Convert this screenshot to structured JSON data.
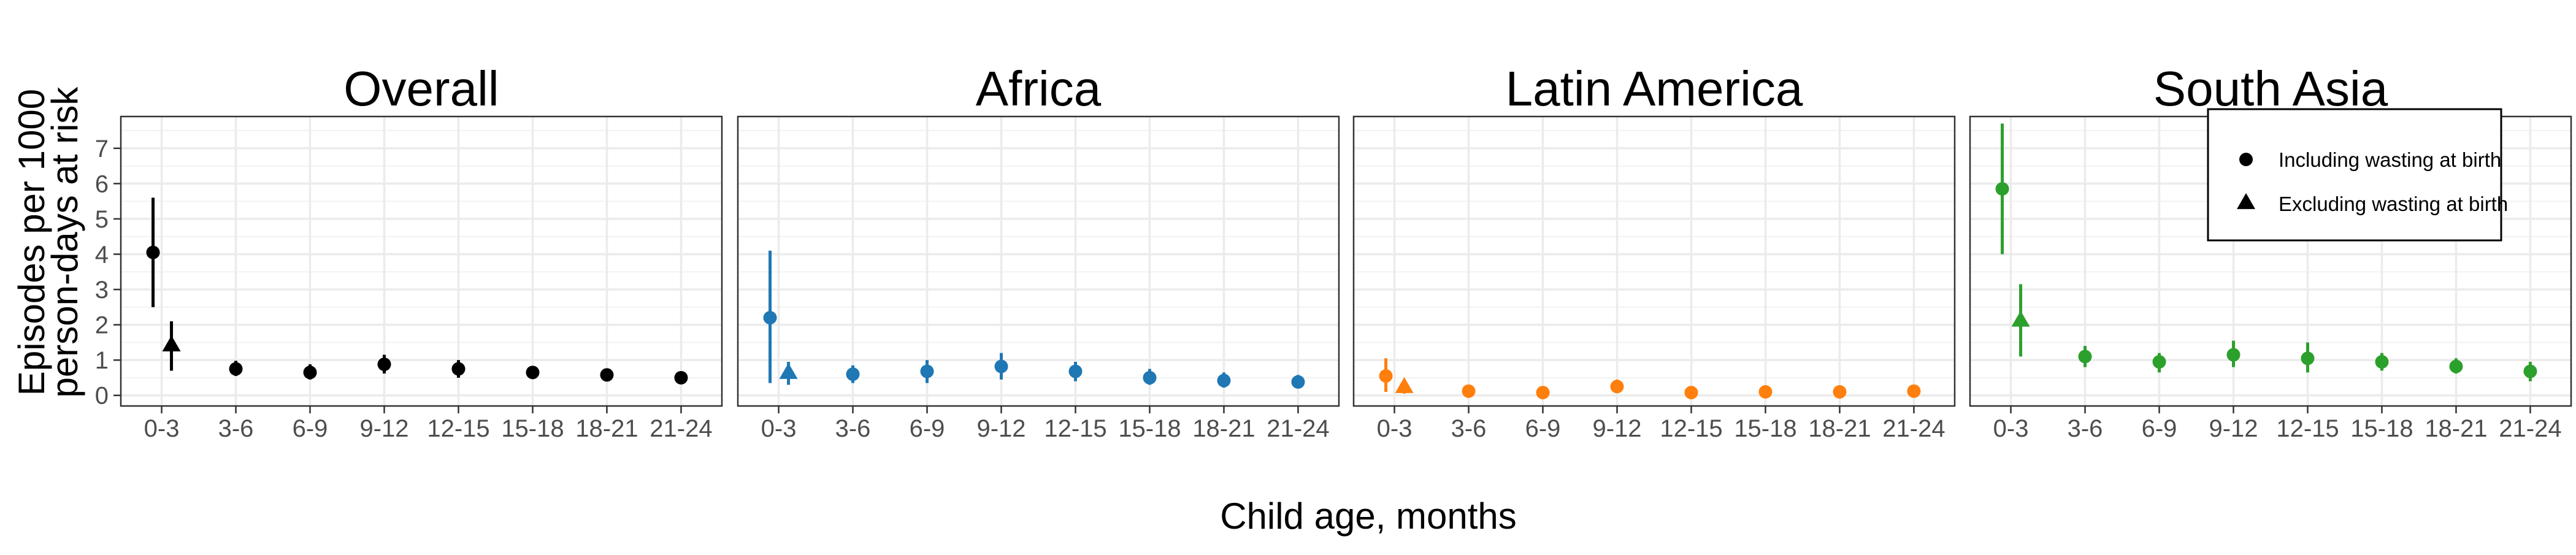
{
  "chart_data": {
    "type": "scatter",
    "xlabel": "Child age, months",
    "ylabel": [
      "Episodes per 1000",
      "person-days at risk"
    ],
    "categories": [
      "0-3",
      "3-6",
      "6-9",
      "9-12",
      "12-15",
      "15-18",
      "18-21",
      "21-24"
    ],
    "ylim": [
      -0.3,
      7.9
    ],
    "yticks": [
      0,
      1,
      2,
      3,
      4,
      5,
      6,
      7
    ],
    "grid": true,
    "legend_placement": "top-right",
    "legend": [
      {
        "label": "Including wasting at birth",
        "marker": "circle"
      },
      {
        "label": "Excluding wasting at birth",
        "marker": "triangle"
      }
    ],
    "panels": [
      {
        "title": "Overall",
        "color": "#000000",
        "including": [
          {
            "x": "0-3",
            "y": 4.05,
            "lo": 2.5,
            "hi": 5.6
          },
          {
            "x": "3-6",
            "y": 0.75,
            "lo": 0.55,
            "hi": 0.98
          },
          {
            "x": "6-9",
            "y": 0.65,
            "lo": 0.45,
            "hi": 0.88
          },
          {
            "x": "9-12",
            "y": 0.88,
            "lo": 0.62,
            "hi": 1.15
          },
          {
            "x": "12-15",
            "y": 0.75,
            "lo": 0.5,
            "hi": 1.0
          },
          {
            "x": "15-18",
            "y": 0.65,
            "lo": 0.5,
            "hi": 0.8
          },
          {
            "x": "18-21",
            "y": 0.58,
            "lo": 0.45,
            "hi": 0.7
          },
          {
            "x": "21-24",
            "y": 0.5,
            "lo": 0.35,
            "hi": 0.65
          }
        ],
        "excluding": {
          "x": "0-3",
          "y": 1.4,
          "lo": 0.7,
          "hi": 2.1
        }
      },
      {
        "title": "Africa",
        "color": "#1f77b4",
        "including": [
          {
            "x": "0-3",
            "y": 2.2,
            "lo": 0.35,
            "hi": 4.1
          },
          {
            "x": "3-6",
            "y": 0.6,
            "lo": 0.35,
            "hi": 0.85
          },
          {
            "x": "6-9",
            "y": 0.68,
            "lo": 0.35,
            "hi": 1.0
          },
          {
            "x": "9-12",
            "y": 0.82,
            "lo": 0.45,
            "hi": 1.2
          },
          {
            "x": "12-15",
            "y": 0.68,
            "lo": 0.4,
            "hi": 0.95
          },
          {
            "x": "15-18",
            "y": 0.5,
            "lo": 0.3,
            "hi": 0.75
          },
          {
            "x": "18-21",
            "y": 0.42,
            "lo": 0.22,
            "hi": 0.65
          },
          {
            "x": "21-24",
            "y": 0.38,
            "lo": 0.2,
            "hi": 0.58
          }
        ],
        "excluding": {
          "x": "0-3",
          "y": 0.62,
          "lo": 0.3,
          "hi": 0.95
        }
      },
      {
        "title": "Latin America",
        "color": "#ff7f0e",
        "including": [
          {
            "x": "0-3",
            "y": 0.55,
            "lo": 0.1,
            "hi": 1.05
          },
          {
            "x": "3-6",
            "y": 0.12,
            "lo": 0.05,
            "hi": 0.2
          },
          {
            "x": "6-9",
            "y": 0.08,
            "lo": 0.02,
            "hi": 0.15
          },
          {
            "x": "9-12",
            "y": 0.25,
            "lo": 0.08,
            "hi": 0.45
          },
          {
            "x": "12-15",
            "y": 0.08,
            "lo": 0.02,
            "hi": 0.15
          },
          {
            "x": "15-18",
            "y": 0.1,
            "lo": 0.03,
            "hi": 0.18
          },
          {
            "x": "18-21",
            "y": 0.1,
            "lo": 0.03,
            "hi": 0.18
          },
          {
            "x": "21-24",
            "y": 0.12,
            "lo": 0.05,
            "hi": 0.2
          }
        ],
        "excluding": {
          "x": "0-3",
          "y": 0.22,
          "lo": 0.05,
          "hi": 0.45
        }
      },
      {
        "title": "South Asia",
        "color": "#2ca02c",
        "including": [
          {
            "x": "0-3",
            "y": 5.85,
            "lo": 4.0,
            "hi": 7.7
          },
          {
            "x": "3-6",
            "y": 1.1,
            "lo": 0.8,
            "hi": 1.4
          },
          {
            "x": "6-9",
            "y": 0.95,
            "lo": 0.65,
            "hi": 1.2
          },
          {
            "x": "9-12",
            "y": 1.15,
            "lo": 0.8,
            "hi": 1.55
          },
          {
            "x": "12-15",
            "y": 1.05,
            "lo": 0.65,
            "hi": 1.5
          },
          {
            "x": "15-18",
            "y": 0.95,
            "lo": 0.7,
            "hi": 1.2
          },
          {
            "x": "18-21",
            "y": 0.82,
            "lo": 0.62,
            "hi": 1.05
          },
          {
            "x": "21-24",
            "y": 0.68,
            "lo": 0.4,
            "hi": 0.95
          }
        ],
        "excluding": {
          "x": "0-3",
          "y": 2.1,
          "lo": 1.1,
          "hi": 3.15
        }
      }
    ]
  }
}
